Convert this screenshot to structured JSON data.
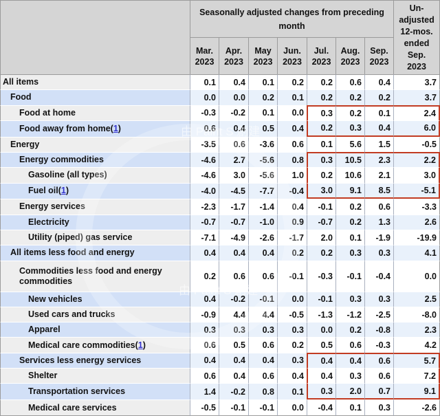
{
  "chart_data": {
    "type": "table",
    "header": {
      "group_label": "Seasonally adjusted changes from preceding\nmonth",
      "unadjusted_label": "Un-\nadjusted\n12-mos.\nended\nSep.\n2023",
      "months": [
        "Mar.\n2023",
        "Apr.\n2023",
        "May\n2023",
        "Jun.\n2023",
        "Jul.\n2023",
        "Aug.\n2023",
        "Sep.\n2023"
      ]
    },
    "rows": [
      {
        "label": "All items",
        "indent": 0,
        "shade": "gray",
        "values": [
          "0.1",
          "0.4",
          "0.1",
          "0.2",
          "0.2",
          "0.6",
          "0.4",
          "3.7"
        ]
      },
      {
        "label": "Food",
        "indent": 1,
        "shade": "blue",
        "values": [
          "0.0",
          "0.0",
          "0.2",
          "0.1",
          "0.2",
          "0.2",
          "0.2",
          "3.7"
        ]
      },
      {
        "label": "Food at home",
        "indent": 2,
        "shade": "gray",
        "values": [
          "-0.3",
          "-0.2",
          "0.1",
          "0.0",
          "0.3",
          "0.2",
          "0.1",
          "2.4"
        ]
      },
      {
        "label": "Food away from home",
        "footnote": "1",
        "indent": 2,
        "shade": "blue",
        "values": [
          "0.6",
          "0.4",
          "0.5",
          "0.4",
          "0.2",
          "0.3",
          "0.4",
          "6.0"
        ]
      },
      {
        "label": "Energy",
        "indent": 1,
        "shade": "gray",
        "values": [
          "-3.5",
          "0.6",
          "-3.6",
          "0.6",
          "0.1",
          "5.6",
          "1.5",
          "-0.5"
        ]
      },
      {
        "label": "Energy commodities",
        "indent": 2,
        "shade": "blue",
        "values": [
          "-4.6",
          "2.7",
          "-5.6",
          "0.8",
          "0.3",
          "10.5",
          "2.3",
          "2.2"
        ]
      },
      {
        "label": "Gasoline (all types)",
        "indent": 3,
        "shade": "gray",
        "values": [
          "-4.6",
          "3.0",
          "-5.6",
          "1.0",
          "0.2",
          "10.6",
          "2.1",
          "3.0"
        ]
      },
      {
        "label": "Fuel oil",
        "footnote": "1",
        "indent": 3,
        "shade": "blue",
        "values": [
          "-4.0",
          "-4.5",
          "-7.7",
          "-0.4",
          "3.0",
          "9.1",
          "8.5",
          "-5.1"
        ]
      },
      {
        "label": "Energy services",
        "indent": 2,
        "shade": "gray",
        "values": [
          "-2.3",
          "-1.7",
          "-1.4",
          "0.4",
          "-0.1",
          "0.2",
          "0.6",
          "-3.3"
        ]
      },
      {
        "label": "Electricity",
        "indent": 3,
        "shade": "blue",
        "values": [
          "-0.7",
          "-0.7",
          "-1.0",
          "0.9",
          "-0.7",
          "0.2",
          "1.3",
          "2.6"
        ]
      },
      {
        "label": "Utility (piped) gas service",
        "indent": 3,
        "shade": "gray",
        "values": [
          "-7.1",
          "-4.9",
          "-2.6",
          "-1.7",
          "2.0",
          "0.1",
          "-1.9",
          "-19.9"
        ]
      },
      {
        "label": "All items less food and energy",
        "indent": 1,
        "shade": "blue",
        "values": [
          "0.4",
          "0.4",
          "0.4",
          "0.2",
          "0.2",
          "0.3",
          "0.3",
          "4.1"
        ]
      },
      {
        "label": "Commodities less food and energy commodities",
        "indent": 2,
        "shade": "gray",
        "tall": true,
        "values": [
          "0.2",
          "0.6",
          "0.6",
          "-0.1",
          "-0.3",
          "-0.1",
          "-0.4",
          "0.0"
        ]
      },
      {
        "label": "New vehicles",
        "indent": 3,
        "shade": "blue",
        "values": [
          "0.4",
          "-0.2",
          "-0.1",
          "0.0",
          "-0.1",
          "0.3",
          "0.3",
          "2.5"
        ]
      },
      {
        "label": "Used cars and trucks",
        "indent": 3,
        "shade": "gray",
        "values": [
          "-0.9",
          "4.4",
          "4.4",
          "-0.5",
          "-1.3",
          "-1.2",
          "-2.5",
          "-8.0"
        ]
      },
      {
        "label": "Apparel",
        "indent": 3,
        "shade": "blue",
        "values": [
          "0.3",
          "0.3",
          "0.3",
          "0.3",
          "0.0",
          "0.2",
          "-0.8",
          "2.3"
        ]
      },
      {
        "label": "Medical care commodities",
        "footnote": "1",
        "indent": 3,
        "shade": "gray",
        "values": [
          "0.6",
          "0.5",
          "0.6",
          "0.2",
          "0.5",
          "0.6",
          "-0.3",
          "4.2"
        ]
      },
      {
        "label": "Services less energy services",
        "indent": 2,
        "shade": "blue",
        "values": [
          "0.4",
          "0.4",
          "0.4",
          "0.3",
          "0.4",
          "0.4",
          "0.6",
          "5.7"
        ]
      },
      {
        "label": "Shelter",
        "indent": 3,
        "shade": "gray",
        "values": [
          "0.6",
          "0.4",
          "0.6",
          "0.4",
          "0.4",
          "0.3",
          "0.6",
          "7.2"
        ]
      },
      {
        "label": "Transportation services",
        "indent": 3,
        "shade": "blue",
        "values": [
          "1.4",
          "-0.2",
          "0.8",
          "0.1",
          "0.3",
          "2.0",
          "0.7",
          "9.1"
        ]
      },
      {
        "label": "Medical care services",
        "indent": 3,
        "shade": "gray",
        "values": [
          "-0.5",
          "-0.1",
          "-0.1",
          "0.0",
          "-0.4",
          "0.1",
          "0.3",
          "-2.6"
        ]
      }
    ],
    "highlight_boxes": [
      {
        "row_start": 2,
        "row_end": 3,
        "col_start": 4,
        "col_end": 7
      },
      {
        "row_start": 5,
        "row_end": 7,
        "col_start": 4,
        "col_end": 7
      },
      {
        "row_start": 17,
        "row_end": 19,
        "col_start": 4,
        "col_end": 7
      }
    ]
  },
  "colors": {
    "highlight_box": "#c23b22",
    "link": "#3333cc",
    "header_gray": "#d5d5d5",
    "row_label_gray": "#eeeeee",
    "row_label_blue": "#d2e0f7",
    "row_cell_blue": "#e9f1fb"
  },
  "watermark": {
    "text": "由 Paint S 創建"
  }
}
